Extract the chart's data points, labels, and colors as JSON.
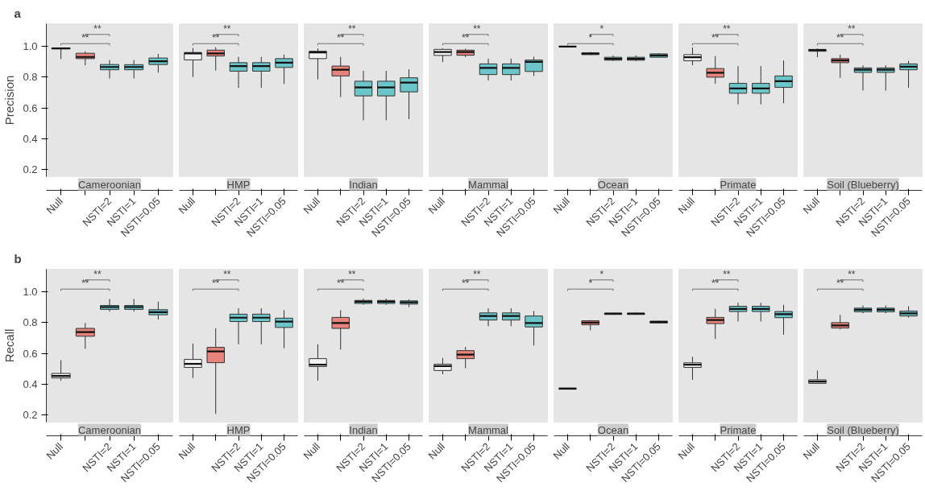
{
  "chart_data": [
    {
      "type": "box",
      "subtitle": "a",
      "title": "Cameroonian",
      "ylabel": "Precision",
      "categories": [
        "Null",
        null,
        "NSTI=2",
        "NSTI=1",
        "NSTI=0.05"
      ],
      "colors": [
        "#f2f2f2",
        "#e8837b",
        "#6cc5c8",
        "#6cc5c8",
        "#6cc5c8"
      ],
      "ylim": [
        0.155,
        1.145
      ],
      "yticks": [
        0.2,
        0.4,
        0.6,
        0.8,
        {
          "value": 1,
          "label": "1.0"
        }
      ],
      "annotations": [
        "**",
        "**"
      ],
      "boxes": [
        {
          "low": 0.916,
          "q1": 0.983,
          "median": 0.985,
          "q3": 0.987,
          "high": 0.99
        },
        {
          "low": 0.876,
          "q1": 0.919,
          "median": 0.93,
          "q3": 0.954,
          "high": 0.967
        },
        {
          "low": 0.79,
          "q1": 0.847,
          "median": 0.865,
          "q3": 0.881,
          "high": 0.91
        },
        {
          "low": 0.79,
          "q1": 0.847,
          "median": 0.865,
          "q3": 0.88,
          "high": 0.91
        },
        {
          "low": 0.828,
          "q1": 0.881,
          "median": 0.902,
          "q3": 0.923,
          "high": 0.95
        }
      ]
    },
    {
      "type": "box",
      "title": "HMP",
      "tick_labels": "x",
      "categories": [
        "Null",
        null,
        "NSTI=2",
        "NSTI=1",
        "NSTI=0.05"
      ],
      "colors": [
        "#f2f2f2",
        "#e8837b",
        "#6cc5c8",
        "#6cc5c8",
        "#6cc5c8"
      ],
      "ylim": [
        0.155,
        1.145
      ],
      "annotations": [
        "**",
        "**"
      ],
      "boxes": [
        {
          "low": 0.8,
          "q1": 0.911,
          "median": 0.953,
          "q3": 0.959,
          "high": 0.988
        },
        {
          "low": 0.842,
          "q1": 0.936,
          "median": 0.953,
          "q3": 0.974,
          "high": 0.993
        },
        {
          "low": 0.73,
          "q1": 0.838,
          "median": 0.871,
          "q3": 0.893,
          "high": 0.93
        },
        {
          "low": 0.73,
          "q1": 0.838,
          "median": 0.871,
          "q3": 0.893,
          "high": 0.93
        },
        {
          "low": 0.756,
          "q1": 0.862,
          "median": 0.893,
          "q3": 0.919,
          "high": 0.945
        }
      ]
    },
    {
      "type": "box",
      "title": "Indian",
      "tick_labels": "x",
      "categories": [
        "Null",
        null,
        "NSTI=2",
        "NSTI=1",
        "NSTI=0.05"
      ],
      "colors": [
        "#f2f2f2",
        "#e8837b",
        "#6cc5c8",
        "#6cc5c8",
        "#6cc5c8"
      ],
      "ylim": [
        0.155,
        1.145
      ],
      "annotations": [
        "**",
        "**"
      ],
      "boxes": [
        {
          "low": 0.785,
          "q1": 0.919,
          "median": 0.959,
          "q3": 0.967,
          "high": 0.985
        },
        {
          "low": 0.67,
          "q1": 0.807,
          "median": 0.847,
          "q3": 0.871,
          "high": 0.93
        },
        {
          "low": 0.52,
          "q1": 0.678,
          "median": 0.733,
          "q3": 0.773,
          "high": 0.84
        },
        {
          "low": 0.52,
          "q1": 0.678,
          "median": 0.733,
          "q3": 0.773,
          "high": 0.84
        },
        {
          "low": 0.527,
          "q1": 0.704,
          "median": 0.764,
          "q3": 0.795,
          "high": 0.85
        }
      ]
    },
    {
      "type": "box",
      "title": "Mammal",
      "tick_labels": "x",
      "categories": [
        "Null",
        null,
        "NSTI=2",
        "NSTI=1",
        "NSTI=0.05"
      ],
      "colors": [
        "#f2f2f2",
        "#e8837b",
        "#6cc5c8",
        "#6cc5c8",
        "#6cc5c8"
      ],
      "ylim": [
        0.155,
        1.145
      ],
      "annotations": [
        "**",
        "**"
      ],
      "boxes": [
        {
          "low": 0.897,
          "q1": 0.94,
          "median": 0.962,
          "q3": 0.979,
          "high": 0.985
        },
        {
          "low": 0.928,
          "q1": 0.941,
          "median": 0.962,
          "q3": 0.974,
          "high": 0.983
        },
        {
          "low": 0.778,
          "q1": 0.816,
          "median": 0.859,
          "q3": 0.885,
          "high": 0.919
        },
        {
          "low": 0.778,
          "q1": 0.816,
          "median": 0.859,
          "q3": 0.885,
          "high": 0.919
        },
        {
          "low": 0.807,
          "q1": 0.836,
          "median": 0.898,
          "q3": 0.91,
          "high": 0.931
        }
      ]
    },
    {
      "type": "box",
      "title": "Ocean",
      "tick_labels": "x",
      "categories": [
        "Null",
        null,
        "NSTI=2",
        "NSTI=1",
        "NSTI=0.05"
      ],
      "colors": [
        "#f2f2f2",
        "#e8837b",
        "#6cc5c8",
        "#6cc5c8",
        "#6cc5c8"
      ],
      "ylim": [
        0.155,
        1.145
      ],
      "annotations": [
        "*",
        "*"
      ],
      "boxes": [
        {
          "low": 0.995,
          "q1": 0.996,
          "median": 0.997,
          "q3": 0.998,
          "high": 1.0
        },
        {
          "low": 0.943,
          "q1": 0.945,
          "median": 0.951,
          "q3": 0.957,
          "high": 0.962
        },
        {
          "low": 0.903,
          "q1": 0.909,
          "median": 0.918,
          "q3": 0.928,
          "high": 0.94
        },
        {
          "low": 0.903,
          "q1": 0.909,
          "median": 0.918,
          "q3": 0.928,
          "high": 0.94
        },
        {
          "low": 0.926,
          "q1": 0.928,
          "median": 0.94,
          "q3": 0.95,
          "high": 0.955
        }
      ]
    },
    {
      "type": "box",
      "title": "Primate",
      "tick_labels": "x",
      "categories": [
        "Null",
        null,
        "NSTI=2",
        "NSTI=1",
        "NSTI=0.05"
      ],
      "colors": [
        "#f2f2f2",
        "#e8837b",
        "#6cc5c8",
        "#6cc5c8",
        "#6cc5c8"
      ],
      "ylim": [
        0.155,
        1.145
      ],
      "annotations": [
        "**",
        "**"
      ],
      "boxes": [
        {
          "low": 0.876,
          "q1": 0.905,
          "median": 0.928,
          "q3": 0.945,
          "high": 0.991
        },
        {
          "low": 0.756,
          "q1": 0.799,
          "median": 0.828,
          "q3": 0.855,
          "high": 0.936
        },
        {
          "low": 0.623,
          "q1": 0.695,
          "median": 0.726,
          "q3": 0.759,
          "high": 0.871
        },
        {
          "low": 0.623,
          "q1": 0.695,
          "median": 0.726,
          "q3": 0.759,
          "high": 0.871
        },
        {
          "low": 0.63,
          "q1": 0.733,
          "median": 0.773,
          "q3": 0.807,
          "high": 0.907
        }
      ]
    },
    {
      "type": "box",
      "title": "Soil (Blueberry)",
      "tick_labels": "x",
      "categories": [
        "Null",
        null,
        "NSTI=2",
        "NSTI=1",
        "NSTI=0.05"
      ],
      "colors": [
        "#f2f2f2",
        "#e8837b",
        "#6cc5c8",
        "#6cc5c8",
        "#6cc5c8"
      ],
      "ylim": [
        0.155,
        1.145
      ],
      "annotations": [
        "**",
        "**"
      ],
      "boxes": [
        {
          "low": 0.928,
          "q1": 0.967,
          "median": 0.974,
          "q3": 0.979,
          "high": 0.985
        },
        {
          "low": 0.795,
          "q1": 0.893,
          "median": 0.907,
          "q3": 0.919,
          "high": 0.945
        },
        {
          "low": 0.713,
          "q1": 0.83,
          "median": 0.847,
          "q3": 0.859,
          "high": 0.876
        },
        {
          "low": 0.713,
          "q1": 0.83,
          "median": 0.847,
          "q3": 0.859,
          "high": 0.876
        },
        {
          "low": 0.73,
          "q1": 0.847,
          "median": 0.867,
          "q3": 0.885,
          "high": 0.905
        }
      ]
    },
    {
      "type": "box",
      "subtitle": "b",
      "title": "Cameroonian",
      "ylabel": "Recall",
      "categories": [
        "Null",
        null,
        "NSTI=2",
        "NSTI=1",
        "NSTI=0.05"
      ],
      "colors": [
        "#f2f2f2",
        "#e8837b",
        "#6cc5c8",
        "#6cc5c8",
        "#6cc5c8"
      ],
      "ylim": [
        0.155,
        1.145
      ],
      "yticks": [
        0.2,
        0.4,
        0.6,
        0.8,
        {
          "value": 1,
          "label": "1.0"
        }
      ],
      "annotations": [
        "**",
        "**"
      ],
      "boxes": [
        {
          "low": 0.423,
          "q1": 0.441,
          "median": 0.454,
          "q3": 0.47,
          "high": 0.556
        },
        {
          "low": 0.63,
          "q1": 0.711,
          "median": 0.738,
          "q3": 0.762,
          "high": 0.797
        },
        {
          "low": 0.871,
          "q1": 0.885,
          "median": 0.9,
          "q3": 0.91,
          "high": 0.952
        },
        {
          "low": 0.871,
          "q1": 0.885,
          "median": 0.9,
          "q3": 0.91,
          "high": 0.952
        },
        {
          "low": 0.819,
          "q1": 0.85,
          "median": 0.867,
          "q3": 0.883,
          "high": 0.935
        }
      ]
    },
    {
      "type": "box",
      "title": "HMP",
      "tick_labels": "x",
      "categories": [
        "Null",
        null,
        "NSTI=2",
        "NSTI=1",
        "NSTI=0.05"
      ],
      "colors": [
        "#f2f2f2",
        "#e8837b",
        "#6cc5c8",
        "#6cc5c8",
        "#6cc5c8"
      ],
      "ylim": [
        0.155,
        1.145
      ],
      "annotations": [
        "**",
        "**"
      ],
      "boxes": [
        {
          "low": 0.441,
          "q1": 0.509,
          "median": 0.532,
          "q3": 0.561,
          "high": 0.664
        },
        {
          "low": 0.208,
          "q1": 0.54,
          "median": 0.613,
          "q3": 0.639,
          "high": 0.762
        },
        {
          "low": 0.659,
          "q1": 0.806,
          "median": 0.831,
          "q3": 0.854,
          "high": 0.892
        },
        {
          "low": 0.659,
          "q1": 0.806,
          "median": 0.831,
          "q3": 0.854,
          "high": 0.892
        },
        {
          "low": 0.633,
          "q1": 0.768,
          "median": 0.806,
          "q3": 0.828,
          "high": 0.88
        }
      ]
    },
    {
      "type": "box",
      "title": "Indian",
      "tick_labels": "x",
      "categories": [
        "Null",
        null,
        "NSTI=2",
        "NSTI=1",
        "NSTI=0.05"
      ],
      "colors": [
        "#f2f2f2",
        "#e8837b",
        "#6cc5c8",
        "#6cc5c8",
        "#6cc5c8"
      ],
      "ylim": [
        0.155,
        1.145
      ],
      "annotations": [
        "**",
        "**"
      ],
      "boxes": [
        {
          "low": 0.423,
          "q1": 0.515,
          "median": 0.527,
          "q3": 0.566,
          "high": 0.659
        },
        {
          "low": 0.625,
          "q1": 0.762,
          "median": 0.797,
          "q3": 0.833,
          "high": 0.88
        },
        {
          "low": 0.915,
          "q1": 0.923,
          "median": 0.935,
          "q3": 0.943,
          "high": 0.955
        },
        {
          "low": 0.915,
          "q1": 0.923,
          "median": 0.935,
          "q3": 0.943,
          "high": 0.955
        },
        {
          "low": 0.9,
          "q1": 0.919,
          "median": 0.931,
          "q3": 0.94,
          "high": 0.95
        }
      ]
    },
    {
      "type": "box",
      "title": "Mammal",
      "tick_labels": "x",
      "categories": [
        "Null",
        null,
        "NSTI=2",
        "NSTI=1",
        "NSTI=0.05"
      ],
      "colors": [
        "#f2f2f2",
        "#e8837b",
        "#6cc5c8",
        "#6cc5c8",
        "#6cc5c8"
      ],
      "ylim": [
        0.155,
        1.145
      ],
      "annotations": [
        "**",
        "**"
      ],
      "boxes": [
        {
          "low": 0.465,
          "q1": 0.489,
          "median": 0.518,
          "q3": 0.53,
          "high": 0.57
        },
        {
          "low": 0.504,
          "q1": 0.566,
          "median": 0.592,
          "q3": 0.618,
          "high": 0.642
        },
        {
          "low": 0.776,
          "q1": 0.816,
          "median": 0.842,
          "q3": 0.862,
          "high": 0.892
        },
        {
          "low": 0.776,
          "q1": 0.816,
          "median": 0.842,
          "q3": 0.862,
          "high": 0.892
        },
        {
          "low": 0.651,
          "q1": 0.771,
          "median": 0.797,
          "q3": 0.842,
          "high": 0.874
        }
      ]
    },
    {
      "type": "box",
      "title": "Ocean",
      "tick_labels": "x",
      "categories": [
        "Null",
        null,
        "NSTI=2",
        "NSTI=1",
        "NSTI=0.05"
      ],
      "colors": [
        "#f2f2f2",
        "#e8837b",
        "#6cc5c8",
        "#6cc5c8",
        "#6cc5c8"
      ],
      "ylim": [
        0.155,
        1.145
      ],
      "annotations": [
        "*",
        "*"
      ],
      "boxes": [
        {
          "low": 0.366,
          "q1": 0.368,
          "median": 0.372,
          "q3": 0.375,
          "high": 0.376
        },
        {
          "low": 0.75,
          "q1": 0.785,
          "median": 0.799,
          "q3": 0.811,
          "high": 0.815
        },
        {
          "low": 0.85,
          "q1": 0.852,
          "median": 0.857,
          "q3": 0.861,
          "high": 0.863
        },
        {
          "low": 0.85,
          "q1": 0.852,
          "median": 0.857,
          "q3": 0.861,
          "high": 0.863
        },
        {
          "low": 0.795,
          "q1": 0.797,
          "median": 0.803,
          "q3": 0.809,
          "high": 0.812
        }
      ]
    },
    {
      "type": "box",
      "title": "Primate",
      "tick_labels": "x",
      "categories": [
        "Null",
        null,
        "NSTI=2",
        "NSTI=1",
        "NSTI=0.05"
      ],
      "colors": [
        "#f2f2f2",
        "#e8837b",
        "#6cc5c8",
        "#6cc5c8",
        "#6cc5c8"
      ],
      "ylim": [
        0.155,
        1.145
      ],
      "annotations": [
        "**",
        "**"
      ],
      "boxes": [
        {
          "low": 0.429,
          "q1": 0.509,
          "median": 0.527,
          "q3": 0.539,
          "high": 0.578
        },
        {
          "low": 0.694,
          "q1": 0.793,
          "median": 0.816,
          "q3": 0.833,
          "high": 0.888
        },
        {
          "low": 0.807,
          "q1": 0.871,
          "median": 0.888,
          "q3": 0.905,
          "high": 0.928
        },
        {
          "low": 0.807,
          "q1": 0.871,
          "median": 0.888,
          "q3": 0.905,
          "high": 0.928
        },
        {
          "low": 0.721,
          "q1": 0.831,
          "median": 0.854,
          "q3": 0.871,
          "high": 0.914
        }
      ]
    },
    {
      "type": "box",
      "title": "Soil (Blueberry)",
      "tick_labels": "x",
      "categories": [
        "Null",
        null,
        "NSTI=2",
        "NSTI=1",
        "NSTI=0.05"
      ],
      "colors": [
        "#f2f2f2",
        "#e8837b",
        "#6cc5c8",
        "#6cc5c8",
        "#6cc5c8"
      ],
      "ylim": [
        0.155,
        1.145
      ],
      "annotations": [
        "**",
        "**"
      ],
      "boxes": [
        {
          "low": 0.405,
          "q1": 0.406,
          "median": 0.418,
          "q3": 0.429,
          "high": 0.489
        },
        {
          "low": 0.756,
          "q1": 0.764,
          "median": 0.781,
          "q3": 0.799,
          "high": 0.849
        },
        {
          "low": 0.86,
          "q1": 0.869,
          "median": 0.883,
          "q3": 0.893,
          "high": 0.91
        },
        {
          "low": 0.86,
          "q1": 0.869,
          "median": 0.883,
          "q3": 0.893,
          "high": 0.91
        },
        {
          "low": 0.831,
          "q1": 0.842,
          "median": 0.859,
          "q3": 0.874,
          "high": 0.905
        }
      ]
    }
  ]
}
